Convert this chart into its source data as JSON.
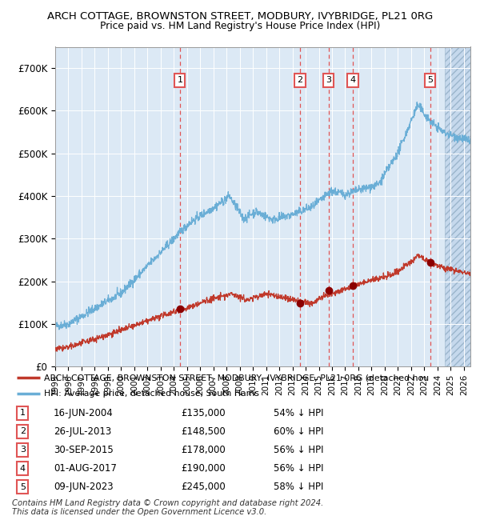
{
  "title": "ARCH COTTAGE, BROWNSTON STREET, MODBURY, IVYBRIDGE, PL21 0RG",
  "subtitle": "Price paid vs. HM Land Registry's House Price Index (HPI)",
  "background_color": "#ffffff",
  "plot_bg_color": "#dce9f5",
  "hatch_bg_color": "#c8d8e8",
  "transactions": [
    {
      "num": 1,
      "date": "16-JUN-2004",
      "date_x": 2004.46,
      "price": 135000,
      "pct": "54% ↓ HPI"
    },
    {
      "num": 2,
      "date": "26-JUL-2013",
      "date_x": 2013.57,
      "price": 148500,
      "pct": "60% ↓ HPI"
    },
    {
      "num": 3,
      "date": "30-SEP-2015",
      "date_x": 2015.75,
      "price": 178000,
      "pct": "56% ↓ HPI"
    },
    {
      "num": 4,
      "date": "01-AUG-2017",
      "date_x": 2017.58,
      "price": 190000,
      "pct": "56% ↓ HPI"
    },
    {
      "num": 5,
      "date": "09-JUN-2023",
      "date_x": 2023.44,
      "price": 245000,
      "pct": "58% ↓ HPI"
    }
  ],
  "xmin": 1995.0,
  "xmax": 2026.5,
  "ymin": 0,
  "ymax": 750000,
  "yticks": [
    0,
    100000,
    200000,
    300000,
    400000,
    500000,
    600000,
    700000
  ],
  "ytick_labels": [
    "£0",
    "£100K",
    "£200K",
    "£300K",
    "£400K",
    "£500K",
    "£600K",
    "£700K"
  ],
  "hpi_color": "#6aaed6",
  "price_color": "#c0392b",
  "marker_color": "#8b0000",
  "vline_color": "#e05555",
  "legend_label_price": "ARCH COTTAGE, BROWNSTON STREET, MODBURY, IVYBRIDGE, PL21 0RG (detached hou",
  "legend_label_hpi": "HPI: Average price, detached house, South Hams",
  "footnote_line1": "Contains HM Land Registry data © Crown copyright and database right 2024.",
  "footnote_line2": "This data is licensed under the Open Government Licence v3.0.",
  "hatch_start": 2024.58
}
